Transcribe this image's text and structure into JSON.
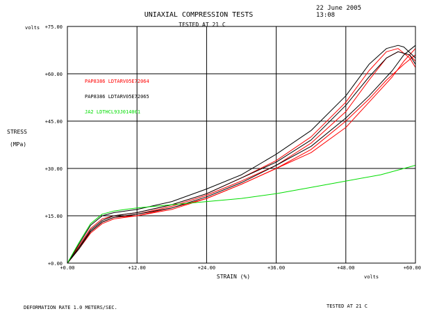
{
  "header": {
    "title": "UNIAXIAL COMPRESSION TESTS",
    "subtitle": "TESTED AT 21 C",
    "date": "22 June 2005",
    "time": "13:08",
    "y_unit_tag": "volts",
    "x_unit_tag": "volts"
  },
  "footer": {
    "left": "DEFORMATION RATE 1.0 METERS/SEC.",
    "right": "TESTED AT 21 C"
  },
  "chart_data": {
    "type": "line",
    "title": "UNIAXIAL COMPRESSION TESTS",
    "subtitle": "TESTED AT 21 C",
    "xlabel": "STRAIN (%)",
    "ylabel_line1": "STRESS",
    "ylabel_line2": "(MPa)",
    "xlim": [
      0,
      60
    ],
    "ylim": [
      0,
      75
    ],
    "x_ticks": [
      0,
      12,
      24,
      36,
      48,
      60
    ],
    "x_tick_labels": [
      "+0.00",
      "+12.00",
      "+24.00",
      "+36.00",
      "+48.00",
      "+60.00"
    ],
    "y_ticks": [
      0,
      15,
      30,
      45,
      60,
      75
    ],
    "y_tick_labels": [
      "+0.00",
      "+15.00",
      "+30.00",
      "+45.00",
      "+60.00",
      "+75.00"
    ],
    "grid": true,
    "legend_position": "upper-left inside plot",
    "colors": {
      "red": "#ff0000",
      "black": "#000000",
      "green": "#00dd00"
    },
    "legend": [
      {
        "label": "PAP8386 LDTARV05E72064",
        "color": "#ff0000"
      },
      {
        "label": "PAP8386 LDTARV05E72065",
        "color": "#000000"
      },
      {
        "label": "JA2 LDTHCL93J014001",
        "color": "#00dd00"
      }
    ],
    "series": [
      {
        "group": "PAP8386 LDTARV05E72064",
        "color": "#ff0000",
        "x": [
          0,
          2,
          4,
          6,
          8,
          12,
          18,
          24,
          30,
          36,
          42,
          48,
          52,
          55,
          57,
          59,
          60
        ],
        "y": [
          0,
          5,
          10,
          13,
          14.5,
          15.5,
          18,
          21.5,
          26,
          31,
          38,
          48,
          58,
          65,
          67,
          66,
          64
        ]
      },
      {
        "group": "PAP8386 LDTARV05E72064",
        "color": "#ff0000",
        "x": [
          0,
          2,
          4,
          6,
          8,
          12,
          18,
          24,
          30,
          36,
          42,
          48,
          52,
          55,
          57,
          59,
          60
        ],
        "y": [
          0,
          5.5,
          11,
          14,
          15,
          16,
          18.5,
          22,
          27,
          32.5,
          40,
          51,
          61,
          67,
          68,
          65,
          62
        ]
      },
      {
        "group": "PAP8386 LDTARV05E72064",
        "color": "#ff0000",
        "x": [
          0,
          2,
          4,
          6,
          8,
          12,
          18,
          24,
          30,
          36,
          42,
          48,
          52,
          55,
          58,
          60
        ],
        "y": [
          0,
          4.5,
          9.5,
          12.5,
          14,
          15,
          17,
          20.5,
          25,
          30,
          36,
          45,
          52,
          58,
          63,
          66
        ]
      },
      {
        "group": "PAP8386 LDTARV05E72064",
        "color": "#ff0000",
        "x": [
          0,
          2,
          4,
          6,
          8,
          12,
          18,
          24,
          30,
          36,
          42,
          48,
          52,
          56,
          58,
          60
        ],
        "y": [
          0,
          4.5,
          10,
          13,
          14.5,
          15,
          17.5,
          20.5,
          25,
          30,
          35,
          43,
          51,
          59,
          64,
          68
        ]
      },
      {
        "group": "PAP8386 LDTARV05E72065",
        "color": "#000000",
        "x": [
          0,
          2,
          4,
          6,
          8,
          12,
          18,
          24,
          30,
          36,
          42,
          48,
          52,
          55,
          57,
          58,
          60
        ],
        "y": [
          0,
          6,
          12,
          15,
          16,
          17,
          19.5,
          23.5,
          28,
          34.5,
          42,
          53,
          63,
          68,
          69,
          68.5,
          65
        ]
      },
      {
        "group": "PAP8386 LDTARV05E72065",
        "color": "#000000",
        "x": [
          0,
          2,
          4,
          6,
          8,
          12,
          18,
          24,
          30,
          36,
          42,
          48,
          52,
          55,
          57,
          59,
          60
        ],
        "y": [
          0,
          5,
          10.5,
          13.5,
          15,
          16,
          18.5,
          22,
          27,
          32,
          39,
          50,
          59,
          65,
          67,
          66,
          63
        ]
      },
      {
        "group": "PAP8386 LDTARV05E72065",
        "color": "#000000",
        "x": [
          0,
          2,
          4,
          6,
          8,
          12,
          18,
          24,
          30,
          36,
          42,
          48,
          52,
          56,
          58,
          60
        ],
        "y": [
          0,
          4.5,
          10,
          13,
          14.5,
          15.5,
          17.5,
          21,
          25.5,
          31,
          37,
          46,
          53,
          61,
          66,
          69
        ]
      },
      {
        "group": "JA2 LDTHCL93J014001",
        "color": "#00dd00",
        "x": [
          0,
          2,
          4,
          6,
          8,
          10,
          12,
          18,
          24,
          30,
          36,
          42,
          48,
          54,
          60
        ],
        "y": [
          0,
          6.5,
          12.5,
          15.5,
          16.5,
          17,
          17.5,
          18.5,
          19.5,
          20.5,
          22,
          24,
          26,
          28,
          31
        ]
      }
    ]
  }
}
